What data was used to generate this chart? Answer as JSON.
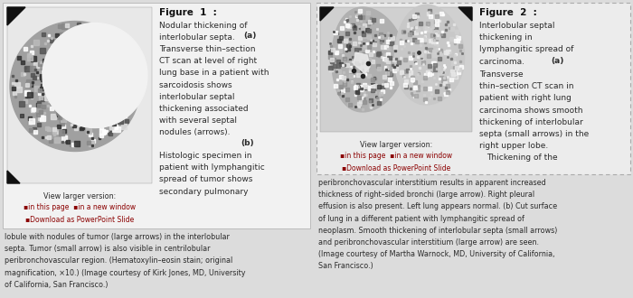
{
  "bg_color": "#dcdcdc",
  "panel1_bg": "#f2f2f2",
  "panel2_bg": "#ececec",
  "border1_color": "#bbbbbb",
  "border2_color": "#aaaaaa",
  "fig1_title": "Figure  1  :",
  "fig2_title": "Figure  2  :",
  "fig1_bottom": "lobule with nodules of tumor (large arrows) in the interlobular\nsepta. Tumor (small arrow) is also visible in centrilobular\nperibronchovascular region. (Hematoxylin–eosin stain; original\nmagnification, ×10.) (Image courtesy of Kirk Jones, MD, University\nof California, San Francisco.)",
  "fig2_bottom": "peribronchovascular interstitium results in apparent increased\nthickness of right–sided bronchi (large arrow). Right pleural\neffusion is also present. Left lung appears normal. (b) Cut surface\nof lung in a different patient with lymphangitic spread of\nneoplasm. Smooth thickening of interlobular septa (small arrows)\nand peribronchovascular interstitium (large arrow) are seen.\n(Image courtesy of Martha Warnock, MD, University of California,\nSan Francisco.)",
  "fig1_view": "View larger version:",
  "fig1_links": "▪in this page  ▪in a new window\n▪Download as PowerPoint Slide",
  "fig2_view": "View larger version:",
  "fig2_links": "▪in this page  ▪in a new window\n▪Download as PowerPoint Slide",
  "link_color": "#8b0000",
  "text_color": "#2a2a2a",
  "title_color": "#111111",
  "caption_fontsize": 6.5,
  "small_fontsize": 5.8,
  "link_fontsize": 5.5
}
